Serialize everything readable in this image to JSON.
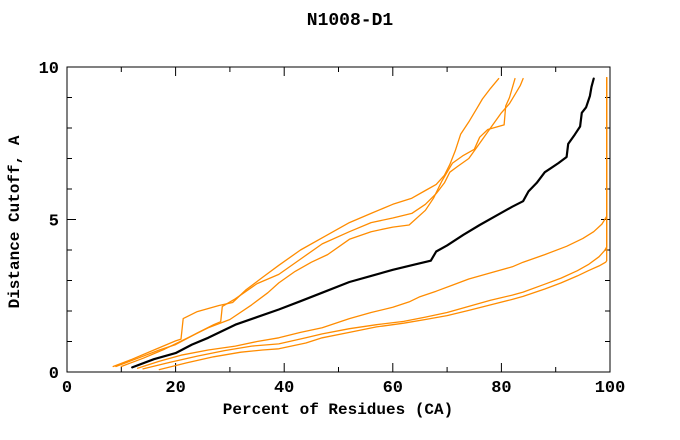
{
  "chart_data": {
    "type": "line",
    "title": "N1008-D1",
    "xlabel": "Percent of Residues (CA)",
    "ylabel": "Distance Cutoff, A",
    "xlim": [
      0,
      100
    ],
    "ylim": [
      0,
      10
    ],
    "x_major_ticks": [
      0,
      20,
      40,
      60,
      80,
      100
    ],
    "x_minor_ticks": [
      10,
      30,
      50,
      70,
      90
    ],
    "y_major_ticks": [
      0,
      5,
      10
    ],
    "y_minor_ticks": [
      1,
      2,
      3,
      4,
      6,
      7,
      8,
      9
    ],
    "grid": false,
    "legend_position": "none",
    "colors": {
      "highlight": "#000000",
      "model": "#ff8c00",
      "axis": "#000000",
      "background": "#ffffff"
    },
    "series": [
      {
        "name": "model-1",
        "color_role": "model",
        "width": 1.3,
        "points": [
          [
            8.5,
            0.18
          ],
          [
            12,
            0.42
          ],
          [
            16,
            0.72
          ],
          [
            20,
            1.02
          ],
          [
            21,
            1.08
          ],
          [
            21.4,
            1.75
          ],
          [
            24,
            1.98
          ],
          [
            28,
            2.18
          ],
          [
            30.5,
            2.28
          ],
          [
            33,
            2.7
          ],
          [
            36,
            3.1
          ],
          [
            39,
            3.5
          ],
          [
            43,
            4.0
          ],
          [
            47,
            4.4
          ],
          [
            52,
            4.9
          ],
          [
            56,
            5.2
          ],
          [
            60,
            5.5
          ],
          [
            63.5,
            5.7
          ],
          [
            66,
            5.95
          ],
          [
            68,
            6.15
          ],
          [
            69.5,
            6.45
          ],
          [
            70.5,
            6.8
          ],
          [
            71.5,
            7.25
          ],
          [
            72.5,
            7.8
          ],
          [
            74,
            8.2
          ],
          [
            75.5,
            8.65
          ],
          [
            76.5,
            8.95
          ],
          [
            78,
            9.3
          ],
          [
            79.5,
            9.62
          ]
        ]
      },
      {
        "name": "model-2",
        "color_role": "model",
        "width": 1.3,
        "points": [
          [
            9,
            0.18
          ],
          [
            13,
            0.45
          ],
          [
            17,
            0.72
          ],
          [
            20,
            0.9
          ],
          [
            24,
            1.28
          ],
          [
            27,
            1.55
          ],
          [
            28.3,
            1.65
          ],
          [
            28.6,
            2.15
          ],
          [
            31,
            2.4
          ],
          [
            35,
            2.9
          ],
          [
            39,
            3.2
          ],
          [
            43,
            3.7
          ],
          [
            47,
            4.2
          ],
          [
            52,
            4.6
          ],
          [
            56,
            4.9
          ],
          [
            60,
            5.05
          ],
          [
            63.5,
            5.2
          ],
          [
            66,
            5.5
          ],
          [
            68,
            5.85
          ],
          [
            69.5,
            6.2
          ],
          [
            70.5,
            6.55
          ],
          [
            72,
            6.75
          ],
          [
            74,
            7.0
          ],
          [
            76,
            7.5
          ],
          [
            78,
            8.0
          ],
          [
            80,
            8.5
          ],
          [
            81.5,
            8.8
          ],
          [
            82.5,
            9.1
          ],
          [
            83.5,
            9.4
          ],
          [
            84,
            9.62
          ]
        ]
      },
      {
        "name": "model-3",
        "color_role": "model",
        "width": 1.3,
        "points": [
          [
            10,
            0.18
          ],
          [
            14,
            0.45
          ],
          [
            18,
            0.75
          ],
          [
            22,
            1.1
          ],
          [
            26,
            1.45
          ],
          [
            30,
            1.72
          ],
          [
            34,
            2.2
          ],
          [
            37,
            2.6
          ],
          [
            39,
            2.92
          ],
          [
            42,
            3.3
          ],
          [
            45,
            3.6
          ],
          [
            48,
            3.85
          ],
          [
            52,
            4.35
          ],
          [
            56,
            4.6
          ],
          [
            60,
            4.75
          ],
          [
            63,
            4.82
          ],
          [
            66,
            5.3
          ],
          [
            67.5,
            5.7
          ],
          [
            69,
            6.25
          ],
          [
            70,
            6.55
          ],
          [
            71,
            6.85
          ],
          [
            73,
            7.1
          ],
          [
            75,
            7.3
          ],
          [
            76,
            7.7
          ],
          [
            77.5,
            7.95
          ],
          [
            80.5,
            8.1
          ],
          [
            80.8,
            8.72
          ],
          [
            81.5,
            9.0
          ],
          [
            82.5,
            9.62
          ]
        ]
      },
      {
        "name": "model-4",
        "color_role": "model",
        "width": 1.3,
        "points": [
          [
            13,
            0.12
          ],
          [
            17,
            0.35
          ],
          [
            21,
            0.55
          ],
          [
            26,
            0.72
          ],
          [
            31,
            0.85
          ],
          [
            35,
            1.0
          ],
          [
            39,
            1.12
          ],
          [
            43,
            1.3
          ],
          [
            47,
            1.45
          ],
          [
            52,
            1.75
          ],
          [
            56,
            1.95
          ],
          [
            60,
            2.12
          ],
          [
            63,
            2.3
          ],
          [
            65,
            2.47
          ],
          [
            68,
            2.65
          ],
          [
            71,
            2.85
          ],
          [
            74,
            3.05
          ],
          [
            78,
            3.25
          ],
          [
            82,
            3.45
          ],
          [
            84,
            3.6
          ],
          [
            88,
            3.85
          ],
          [
            92,
            4.12
          ],
          [
            95,
            4.38
          ],
          [
            97,
            4.6
          ],
          [
            98.5,
            4.85
          ],
          [
            99.4,
            5.1
          ],
          [
            99.4,
            9.65
          ]
        ]
      },
      {
        "name": "model-5",
        "color_role": "model",
        "width": 1.3,
        "points": [
          [
            14,
            0.1
          ],
          [
            19,
            0.32
          ],
          [
            24,
            0.52
          ],
          [
            29,
            0.7
          ],
          [
            34,
            0.85
          ],
          [
            39,
            0.92
          ],
          [
            44,
            1.12
          ],
          [
            47,
            1.25
          ],
          [
            52,
            1.42
          ],
          [
            57,
            1.55
          ],
          [
            62,
            1.66
          ],
          [
            66,
            1.8
          ],
          [
            70,
            1.95
          ],
          [
            74,
            2.15
          ],
          [
            78,
            2.35
          ],
          [
            82,
            2.52
          ],
          [
            84,
            2.62
          ],
          [
            88,
            2.88
          ],
          [
            91,
            3.08
          ],
          [
            94,
            3.32
          ],
          [
            96,
            3.52
          ],
          [
            98,
            3.78
          ],
          [
            99,
            3.98
          ],
          [
            99.4,
            4.1
          ],
          [
            99.4,
            9.65
          ]
        ]
      },
      {
        "name": "model-6",
        "color_role": "model",
        "width": 1.3,
        "points": [
          [
            17,
            0.08
          ],
          [
            22,
            0.3
          ],
          [
            27,
            0.5
          ],
          [
            32,
            0.65
          ],
          [
            36,
            0.72
          ],
          [
            39,
            0.76
          ],
          [
            44,
            0.95
          ],
          [
            47,
            1.12
          ],
          [
            52,
            1.3
          ],
          [
            57,
            1.48
          ],
          [
            62,
            1.6
          ],
          [
            66,
            1.72
          ],
          [
            70,
            1.85
          ],
          [
            74,
            2.02
          ],
          [
            78,
            2.2
          ],
          [
            82,
            2.38
          ],
          [
            84,
            2.48
          ],
          [
            88,
            2.72
          ],
          [
            91,
            2.92
          ],
          [
            94,
            3.15
          ],
          [
            96,
            3.32
          ],
          [
            98,
            3.48
          ],
          [
            99.2,
            3.6
          ],
          [
            99.4,
            3.65
          ],
          [
            99.4,
            9.65
          ]
        ]
      },
      {
        "name": "highlighted-model",
        "color_role": "highlight",
        "width": 2.2,
        "points": [
          [
            12,
            0.15
          ],
          [
            16,
            0.42
          ],
          [
            20,
            0.62
          ],
          [
            23,
            0.9
          ],
          [
            26,
            1.12
          ],
          [
            31,
            1.55
          ],
          [
            35,
            1.8
          ],
          [
            39,
            2.05
          ],
          [
            43,
            2.32
          ],
          [
            47,
            2.6
          ],
          [
            52,
            2.95
          ],
          [
            56,
            3.15
          ],
          [
            60,
            3.35
          ],
          [
            64,
            3.52
          ],
          [
            67,
            3.65
          ],
          [
            68,
            3.95
          ],
          [
            70,
            4.15
          ],
          [
            73,
            4.5
          ],
          [
            76,
            4.82
          ],
          [
            79,
            5.12
          ],
          [
            82,
            5.42
          ],
          [
            84,
            5.6
          ],
          [
            85,
            5.92
          ],
          [
            86.5,
            6.2
          ],
          [
            88,
            6.55
          ],
          [
            89,
            6.67
          ],
          [
            90.5,
            6.85
          ],
          [
            92,
            7.05
          ],
          [
            92.3,
            7.48
          ],
          [
            93.5,
            7.78
          ],
          [
            94.5,
            8.05
          ],
          [
            94.8,
            8.5
          ],
          [
            95.6,
            8.68
          ],
          [
            96.3,
            9.05
          ],
          [
            96.6,
            9.35
          ],
          [
            97,
            9.62
          ]
        ]
      }
    ]
  }
}
